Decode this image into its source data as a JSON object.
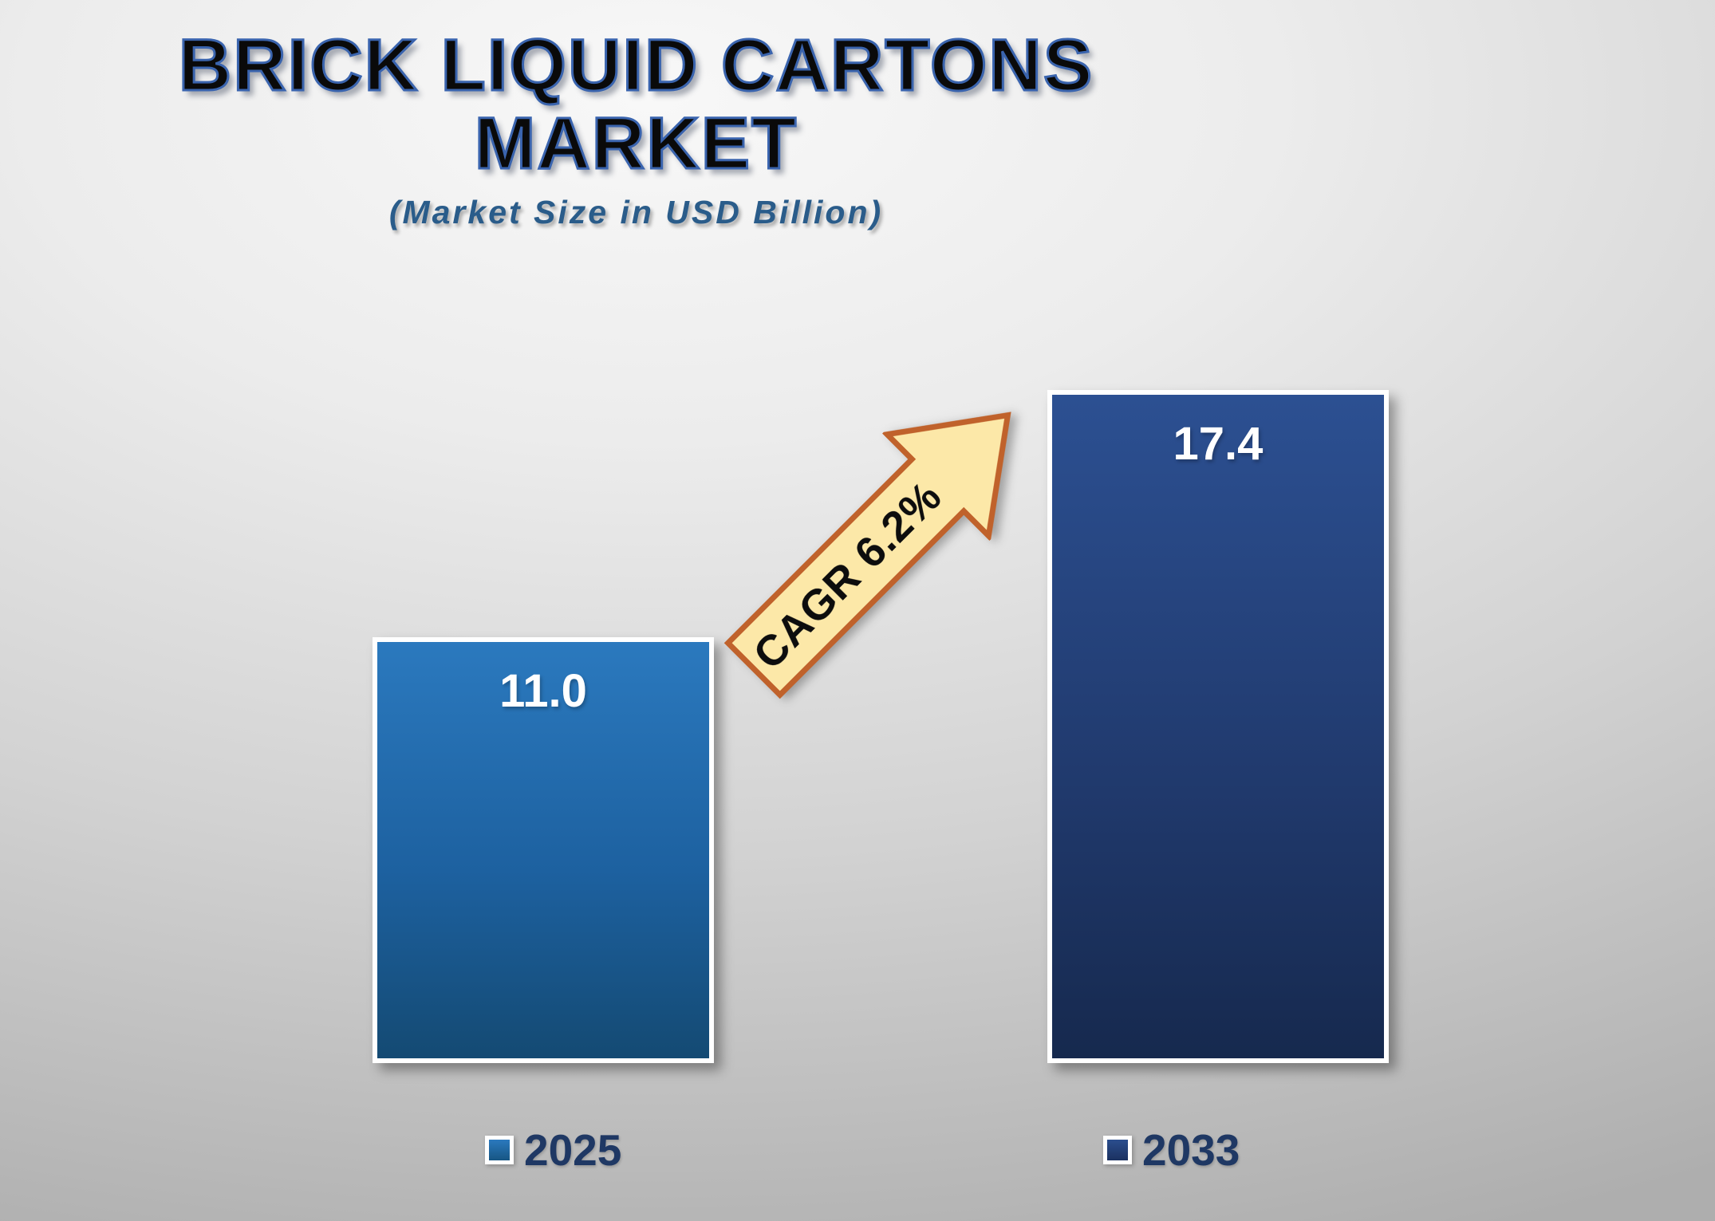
{
  "header": {
    "title_line1": "BRICK LIQUID CARTONS",
    "title_line2": "MARKET",
    "subtitle": "(Market Size in USD Billion)"
  },
  "chart_data": {
    "type": "bar",
    "title": "BRICK LIQUID CARTONS MARKET",
    "subtitle": "(Market Size in USD Billion)",
    "unit": "USD Billion",
    "categories": [
      "2025",
      "2033"
    ],
    "values": [
      11.0,
      17.4
    ],
    "value_labels": [
      "11.0",
      "17.4"
    ],
    "annotation": "CAGR 6.2%",
    "ylim": [
      0,
      18
    ],
    "grid": false,
    "legend_position": "bottom",
    "colors": {
      "bar_2025_top": "#2b79be",
      "bar_2025_bottom": "#144a73",
      "bar_2033_top": "#2c5092",
      "bar_2033_bottom": "#16294e",
      "bar_border": "#ffffff",
      "arrow_fill": "#fce8a8",
      "arrow_border": "#c0622b",
      "title_text": "#0a0a0a",
      "title_outline": "#3a64ae",
      "subtitle_text": "#2a5c8a",
      "legend_text": "#1f3864",
      "value_label_text": "#ffffff"
    }
  }
}
